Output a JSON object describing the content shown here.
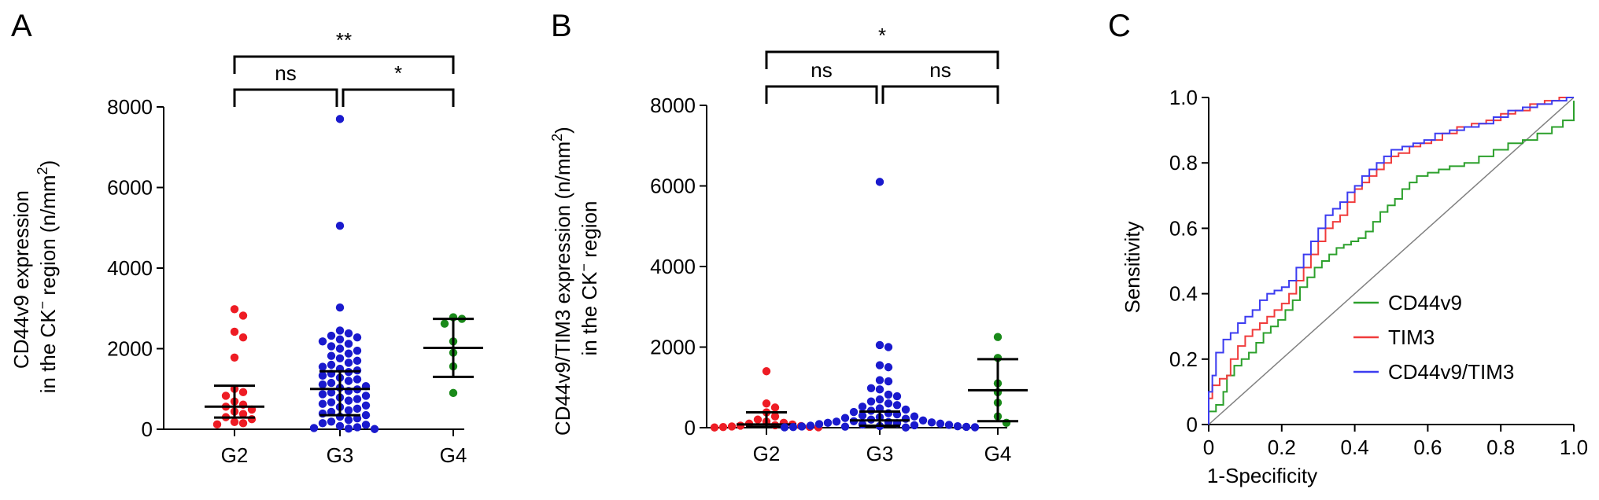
{
  "panels": {
    "a": {
      "letter": "A"
    },
    "b": {
      "letter": "B"
    },
    "c": {
      "letter": "C"
    }
  },
  "colors": {
    "G2": "#ee1c24",
    "G3": "#1a1acd",
    "G4": "#1a8a1a",
    "CD44v9": "#2ca02c",
    "TIM3": "#f03c3c",
    "CD44v9/TIM3": "#3c3cf0",
    "diagonal": "#808080"
  },
  "chart_data": [
    {
      "type": "scatter",
      "panel": "A",
      "ylabel_line1": "CD44v9 expression",
      "ylabel_line2_prefix": "in the CK",
      "ylabel_line2_sup": "−",
      "ylabel_line2_mid": " region (n/mm",
      "ylabel_line2_sup2": "2",
      "ylabel_line2_suffix": ")",
      "ylim": [
        0,
        8000
      ],
      "yticks": [
        "0",
        "2000",
        "4000",
        "6000",
        "8000"
      ],
      "ytick_values": [
        0,
        2000,
        4000,
        6000,
        8000
      ],
      "categories": [
        "G2",
        "G3",
        "G4"
      ],
      "groups": [
        {
          "name": "G2",
          "median": 560,
          "q1": 290,
          "q3": 1080,
          "values": [
            2980,
            2820,
            2420,
            2280,
            1780,
            1000,
            920,
            830,
            690,
            610,
            560,
            490,
            440,
            380,
            300,
            250,
            180,
            150,
            120
          ]
        },
        {
          "name": "G3",
          "median": 1000,
          "q1": 350,
          "q3": 1440,
          "values": [
            7700,
            5050,
            3020,
            2450,
            2380,
            2320,
            2280,
            2230,
            2180,
            2120,
            2060,
            2000,
            1950,
            1880,
            1820,
            1760,
            1700,
            1650,
            1600,
            1550,
            1500,
            1460,
            1420,
            1380,
            1330,
            1280,
            1240,
            1200,
            1150,
            1110,
            1070,
            1030,
            990,
            950,
            910,
            870,
            830,
            790,
            750,
            710,
            670,
            630,
            590,
            550,
            510,
            470,
            430,
            390,
            350,
            310,
            270,
            230,
            190,
            150,
            110,
            80,
            50,
            30,
            15,
            5
          ]
        },
        {
          "name": "G4",
          "median": 2020,
          "q1": 1300,
          "q3": 2740,
          "values": [
            2780,
            2740,
            2620,
            2180,
            1900,
            1560,
            900
          ]
        }
      ],
      "comparisons": [
        {
          "pair": [
            "G2",
            "G4"
          ],
          "label": "**",
          "level": 2
        },
        {
          "pair": [
            "G2",
            "G3"
          ],
          "label": "ns",
          "level": 1
        },
        {
          "pair": [
            "G3",
            "G4"
          ],
          "label": "*",
          "level": 1
        }
      ]
    },
    {
      "type": "scatter",
      "panel": "B",
      "ylabel_line1": "CD44v9/TIM3 expression (n/mm",
      "ylabel_line1_sup": "2",
      "ylabel_line1_suffix": ")",
      "ylabel_line2_prefix": "in the CK",
      "ylabel_line2_sup": "−",
      "ylabel_line2_suffix": " region",
      "ylim": [
        0,
        8000
      ],
      "yticks": [
        "0",
        "2000",
        "4000",
        "6000",
        "8000"
      ],
      "ytick_values": [
        0,
        2000,
        4000,
        6000,
        8000
      ],
      "categories": [
        "G2",
        "G3",
        "G4"
      ],
      "groups": [
        {
          "name": "G2",
          "median": 80,
          "q1": 20,
          "q3": 380,
          "values": [
            1400,
            600,
            500,
            380,
            280,
            200,
            150,
            120,
            100,
            80,
            60,
            50,
            40,
            30,
            20,
            15,
            10,
            5
          ]
        },
        {
          "name": "G3",
          "median": 180,
          "q1": 50,
          "q3": 400,
          "values": [
            6100,
            2050,
            2000,
            1550,
            1500,
            1180,
            1150,
            980,
            950,
            820,
            780,
            700,
            650,
            600,
            560,
            520,
            480,
            450,
            420,
            390,
            360,
            330,
            300,
            280,
            260,
            240,
            220,
            200,
            180,
            160,
            150,
            140,
            130,
            120,
            110,
            100,
            90,
            80,
            70,
            60,
            50,
            40,
            35,
            30,
            25,
            20,
            15,
            10,
            8,
            5
          ]
        },
        {
          "name": "G4",
          "median": 930,
          "q1": 160,
          "q3": 1700,
          "values": [
            2250,
            1730,
            1100,
            880,
            620,
            280,
            120
          ]
        }
      ],
      "comparisons": [
        {
          "pair": [
            "G2",
            "G4"
          ],
          "label": "*",
          "level": 2
        },
        {
          "pair": [
            "G2",
            "G3"
          ],
          "label": "ns",
          "level": 1
        },
        {
          "pair": [
            "G3",
            "G4"
          ],
          "label": "ns",
          "level": 1
        }
      ]
    },
    {
      "type": "line",
      "panel": "C",
      "xlabel": "1-Specificity",
      "ylabel": "Sensitivity",
      "xlim": [
        0,
        1
      ],
      "ylim": [
        0,
        1
      ],
      "xticks": [
        "0",
        "0.2",
        "0.4",
        "0.6",
        "0.8",
        "1.0"
      ],
      "yticks": [
        "0",
        "0.2",
        "0.4",
        "0.6",
        "0.8",
        "1.0"
      ],
      "tick_values": [
        0,
        0.2,
        0.4,
        0.6,
        0.8,
        1.0
      ],
      "legend_position": "bottom-right",
      "series": [
        {
          "name": "CD44v9",
          "color_key": "CD44v9",
          "points": [
            [
              0,
              0
            ],
            [
              0,
              0.04
            ],
            [
              0.02,
              0.06
            ],
            [
              0.04,
              0.1
            ],
            [
              0.05,
              0.15
            ],
            [
              0.07,
              0.18
            ],
            [
              0.09,
              0.2
            ],
            [
              0.11,
              0.22
            ],
            [
              0.13,
              0.25
            ],
            [
              0.15,
              0.28
            ],
            [
              0.17,
              0.3
            ],
            [
              0.19,
              0.32
            ],
            [
              0.21,
              0.35
            ],
            [
              0.23,
              0.38
            ],
            [
              0.25,
              0.42
            ],
            [
              0.27,
              0.45
            ],
            [
              0.29,
              0.48
            ],
            [
              0.31,
              0.5
            ],
            [
              0.33,
              0.52
            ],
            [
              0.35,
              0.54
            ],
            [
              0.37,
              0.55
            ],
            [
              0.39,
              0.56
            ],
            [
              0.41,
              0.57
            ],
            [
              0.43,
              0.59
            ],
            [
              0.45,
              0.62
            ],
            [
              0.47,
              0.65
            ],
            [
              0.49,
              0.67
            ],
            [
              0.51,
              0.69
            ],
            [
              0.53,
              0.72
            ],
            [
              0.55,
              0.74
            ],
            [
              0.57,
              0.76
            ],
            [
              0.6,
              0.77
            ],
            [
              0.63,
              0.78
            ],
            [
              0.66,
              0.79
            ],
            [
              0.7,
              0.8
            ],
            [
              0.74,
              0.82
            ],
            [
              0.78,
              0.84
            ],
            [
              0.82,
              0.86
            ],
            [
              0.86,
              0.87
            ],
            [
              0.9,
              0.89
            ],
            [
              0.94,
              0.91
            ],
            [
              0.97,
              0.93
            ],
            [
              1.0,
              0.99
            ]
          ]
        },
        {
          "name": "TIM3",
          "color_key": "TIM3",
          "points": [
            [
              0,
              0
            ],
            [
              0,
              0.08
            ],
            [
              0.01,
              0.12
            ],
            [
              0.03,
              0.14
            ],
            [
              0.05,
              0.15
            ],
            [
              0.06,
              0.2
            ],
            [
              0.08,
              0.24
            ],
            [
              0.1,
              0.27
            ],
            [
              0.12,
              0.29
            ],
            [
              0.14,
              0.31
            ],
            [
              0.16,
              0.33
            ],
            [
              0.18,
              0.35
            ],
            [
              0.2,
              0.37
            ],
            [
              0.22,
              0.4
            ],
            [
              0.24,
              0.44
            ],
            [
              0.26,
              0.48
            ],
            [
              0.28,
              0.52
            ],
            [
              0.3,
              0.56
            ],
            [
              0.32,
              0.6
            ],
            [
              0.34,
              0.62
            ],
            [
              0.36,
              0.64
            ],
            [
              0.38,
              0.68
            ],
            [
              0.4,
              0.72
            ],
            [
              0.42,
              0.74
            ],
            [
              0.44,
              0.76
            ],
            [
              0.46,
              0.78
            ],
            [
              0.48,
              0.8
            ],
            [
              0.5,
              0.82
            ],
            [
              0.52,
              0.83
            ],
            [
              0.55,
              0.85
            ],
            [
              0.58,
              0.86
            ],
            [
              0.61,
              0.87
            ],
            [
              0.64,
              0.89
            ],
            [
              0.68,
              0.91
            ],
            [
              0.72,
              0.92
            ],
            [
              0.76,
              0.93
            ],
            [
              0.8,
              0.95
            ],
            [
              0.84,
              0.96
            ],
            [
              0.88,
              0.98
            ],
            [
              0.92,
              0.99
            ],
            [
              0.96,
              1.0
            ],
            [
              1.0,
              1.0
            ]
          ]
        },
        {
          "name": "CD44v9/TIM3",
          "color_key": "CD44v9/TIM3",
          "points": [
            [
              0,
              0
            ],
            [
              0,
              0.1
            ],
            [
              0.01,
              0.15
            ],
            [
              0.02,
              0.22
            ],
            [
              0.04,
              0.26
            ],
            [
              0.06,
              0.28
            ],
            [
              0.08,
              0.31
            ],
            [
              0.1,
              0.33
            ],
            [
              0.12,
              0.35
            ],
            [
              0.14,
              0.38
            ],
            [
              0.16,
              0.4
            ],
            [
              0.18,
              0.41
            ],
            [
              0.2,
              0.42
            ],
            [
              0.22,
              0.44
            ],
            [
              0.24,
              0.48
            ],
            [
              0.26,
              0.52
            ],
            [
              0.28,
              0.56
            ],
            [
              0.3,
              0.6
            ],
            [
              0.32,
              0.64
            ],
            [
              0.34,
              0.66
            ],
            [
              0.36,
              0.68
            ],
            [
              0.38,
              0.71
            ],
            [
              0.4,
              0.73
            ],
            [
              0.42,
              0.76
            ],
            [
              0.44,
              0.78
            ],
            [
              0.46,
              0.8
            ],
            [
              0.48,
              0.82
            ],
            [
              0.5,
              0.84
            ],
            [
              0.53,
              0.85
            ],
            [
              0.56,
              0.86
            ],
            [
              0.59,
              0.87
            ],
            [
              0.62,
              0.89
            ],
            [
              0.66,
              0.9
            ],
            [
              0.7,
              0.91
            ],
            [
              0.74,
              0.92
            ],
            [
              0.78,
              0.94
            ],
            [
              0.82,
              0.96
            ],
            [
              0.86,
              0.97
            ],
            [
              0.9,
              0.98
            ],
            [
              0.94,
              0.99
            ],
            [
              0.98,
              1.0
            ],
            [
              1.0,
              1.0
            ]
          ]
        }
      ]
    }
  ]
}
